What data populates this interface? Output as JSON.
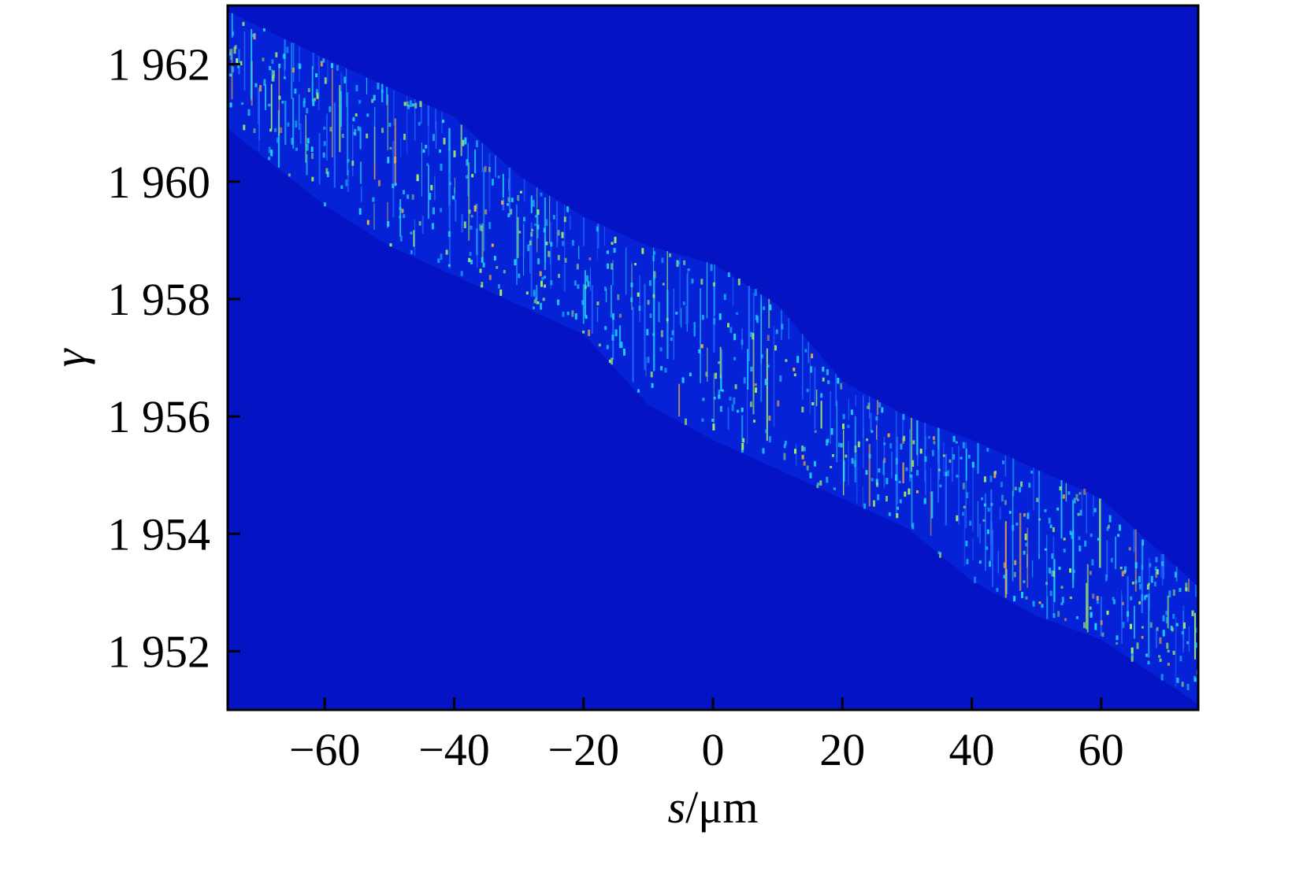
{
  "chart_data": {
    "type": "heatmap",
    "title": "",
    "xlabel": {
      "var": "s",
      "sep": "/",
      "unit": "μm"
    },
    "ylabel": "γ",
    "xlim": [
      -75,
      75
    ],
    "ylim": [
      1951,
      1963
    ],
    "x_ticks": [
      -60,
      -40,
      -20,
      0,
      20,
      40,
      60
    ],
    "x_tick_labels": [
      "−60",
      "−40",
      "−20",
      "0",
      "20",
      "40",
      "60"
    ],
    "y_ticks": [
      1952,
      1954,
      1956,
      1958,
      1960,
      1962
    ],
    "y_tick_labels": [
      "1 952",
      "1 954",
      "1 956",
      "1 958",
      "1 960",
      "1 962"
    ],
    "grid": false,
    "colormap": "jet",
    "background_color": "#0414c4",
    "band": {
      "description_points": [
        {
          "s": -75,
          "gamma_upper": 1962.9,
          "gamma_lower": 1960.9
        },
        {
          "s": -60,
          "gamma_upper": 1962.1,
          "gamma_lower": 1959.6
        },
        {
          "s": -50,
          "gamma_upper": 1961.6,
          "gamma_lower": 1958.9
        },
        {
          "s": -40,
          "gamma_upper": 1961.1,
          "gamma_lower": 1958.4
        },
        {
          "s": -30,
          "gamma_upper": 1960.1,
          "gamma_lower": 1957.9
        },
        {
          "s": -20,
          "gamma_upper": 1959.4,
          "gamma_lower": 1957.4
        },
        {
          "s": -10,
          "gamma_upper": 1958.9,
          "gamma_lower": 1956.2
        },
        {
          "s": 0,
          "gamma_upper": 1958.6,
          "gamma_lower": 1955.6
        },
        {
          "s": 10,
          "gamma_upper": 1957.9,
          "gamma_lower": 1955.1
        },
        {
          "s": 20,
          "gamma_upper": 1956.6,
          "gamma_lower": 1954.6
        },
        {
          "s": 30,
          "gamma_upper": 1956.0,
          "gamma_lower": 1954.1
        },
        {
          "s": 40,
          "gamma_upper": 1955.6,
          "gamma_lower": 1953.2
        },
        {
          "s": 50,
          "gamma_upper": 1955.1,
          "gamma_lower": 1952.6
        },
        {
          "s": 60,
          "gamma_upper": 1954.6,
          "gamma_lower": 1952.2
        },
        {
          "s": 75,
          "gamma_upper": 1953.1,
          "gamma_lower": 1951.1
        }
      ]
    },
    "colors": {
      "background": "#0414c4",
      "band_base": "#0a2ee6",
      "spike_low": "#1f6bff",
      "spike_mid": "#1fd2ff",
      "spike_high": "#9ef06a",
      "spike_peak": "#f0b040"
    }
  }
}
